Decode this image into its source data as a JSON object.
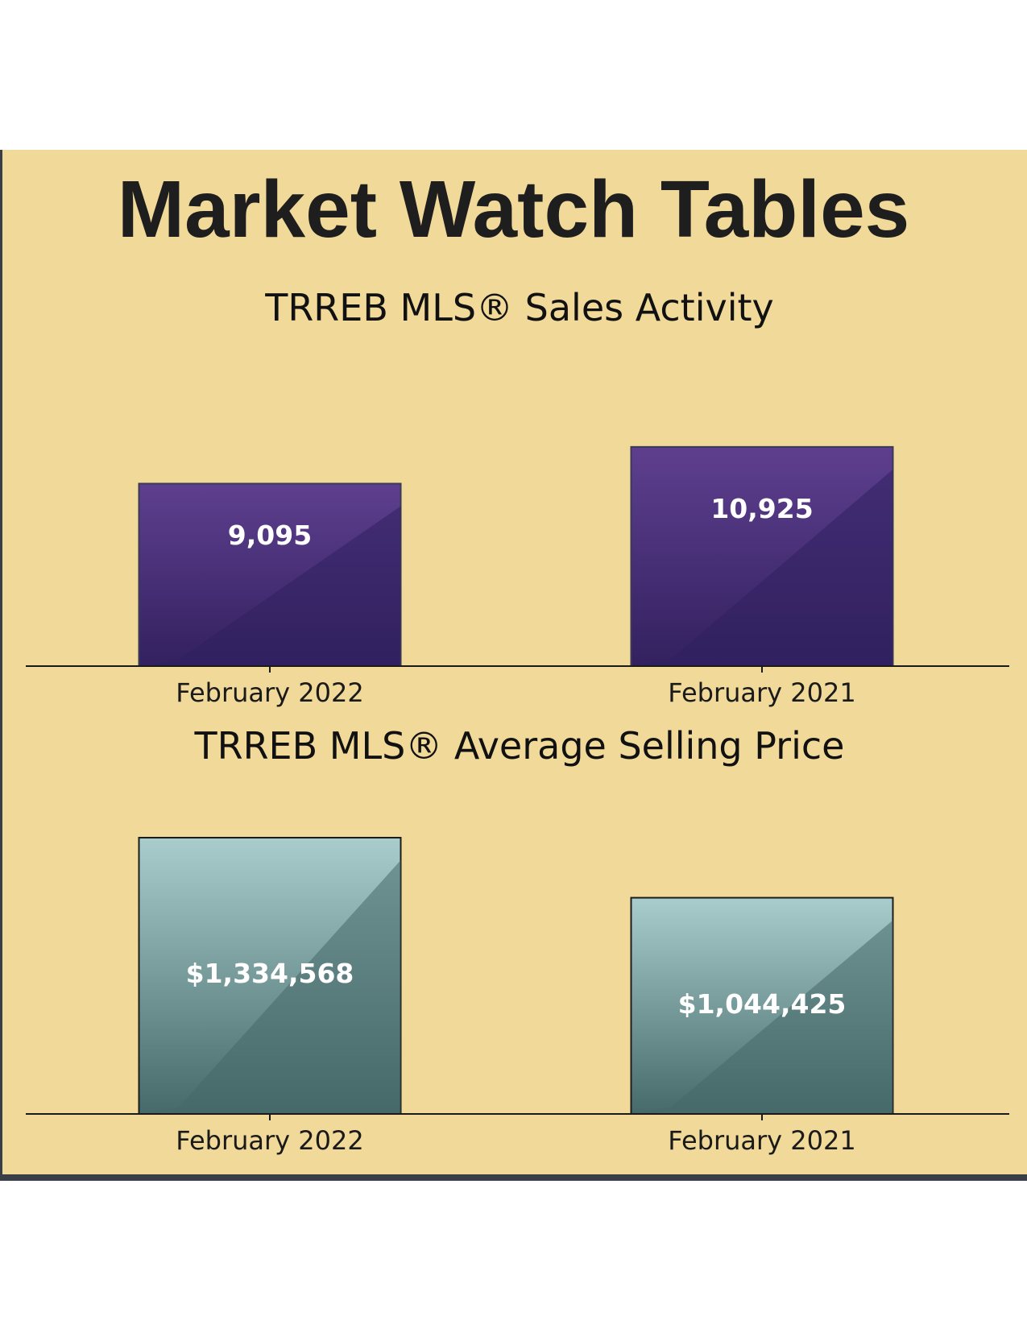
{
  "page": {
    "title": "Market Watch Tables"
  },
  "chart_data": [
    {
      "type": "bar",
      "title": "TRREB MLS® Sales Activity",
      "categories": [
        "February 2022",
        "February 2021"
      ],
      "values": [
        9095,
        10925
      ],
      "value_labels": [
        "9,095",
        "10,925"
      ],
      "xlabel": "",
      "ylabel": "",
      "ylim": [
        0,
        11000
      ],
      "grid": false,
      "colors": {
        "bar_top": "#5e3f8f",
        "bar_bottom": "#33215f",
        "bar_dark": "#2f2060",
        "border": "#3a3a55"
      }
    },
    {
      "type": "bar",
      "title": "TRREB MLS® Average Selling Price",
      "categories": [
        "February 2022",
        "February 2021"
      ],
      "values": [
        1334568,
        1044425
      ],
      "value_labels": [
        "$1,334,568",
        "$1,044,425"
      ],
      "xlabel": "",
      "ylabel": "",
      "ylim": [
        0,
        1334568
      ],
      "grid": false,
      "colors": {
        "bar_top": "#a9cdcc",
        "bar_bottom": "#466a6a",
        "bar_dark": "#456767",
        "border": "#1c1c1c"
      }
    }
  ]
}
